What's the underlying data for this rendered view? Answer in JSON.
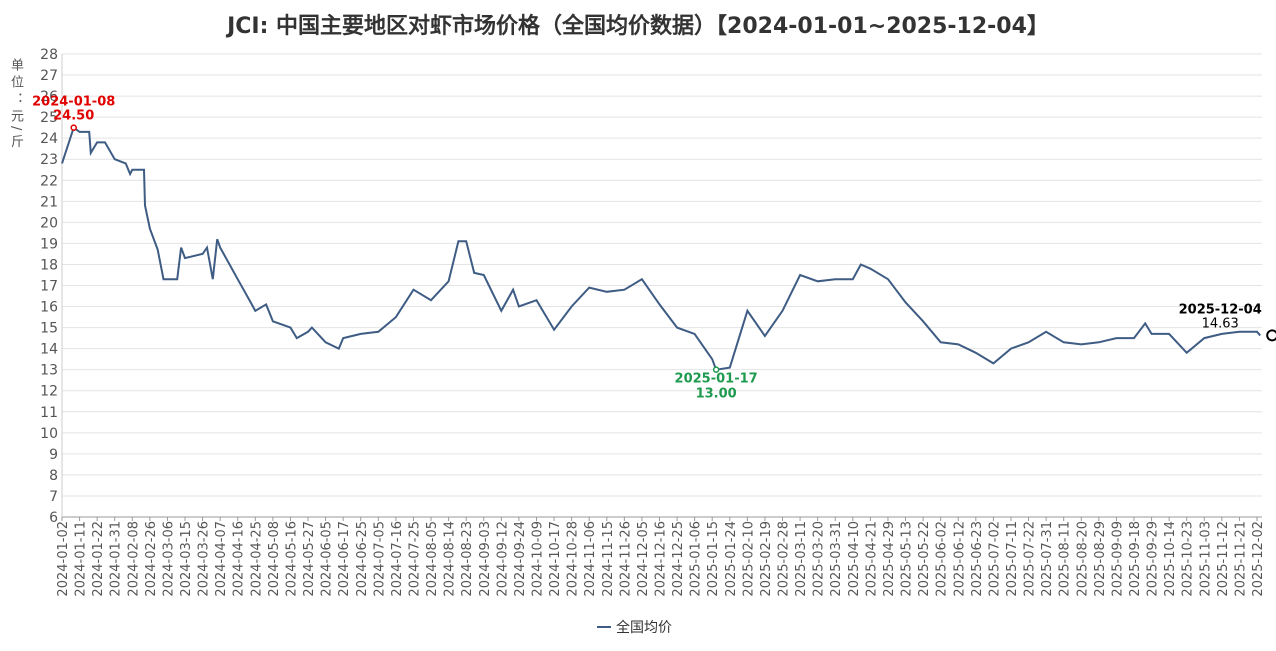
{
  "chart_data": {
    "type": "line",
    "title": "JCI: 中国主要地区对虾市场价格（全国均价数据）【2024-01-01~2025-12-04】",
    "y_label": "单位：元/斤",
    "ylim": [
      6,
      28
    ],
    "yticks": [
      6,
      7,
      8,
      9,
      10,
      11,
      12,
      13,
      14,
      15,
      16,
      17,
      18,
      19,
      20,
      21,
      22,
      23,
      24,
      25,
      26,
      27,
      28
    ],
    "xticks": [
      "2024-01-02",
      "2024-01-11",
      "2024-01-22",
      "2024-01-31",
      "2024-02-08",
      "2024-02-26",
      "2024-03-06",
      "2024-03-15",
      "2024-03-26",
      "2024-04-07",
      "2024-04-16",
      "2024-04-25",
      "2024-05-08",
      "2024-05-16",
      "2024-05-27",
      "2024-06-05",
      "2024-06-17",
      "2024-06-25",
      "2024-07-05",
      "2024-07-16",
      "2024-07-25",
      "2024-08-05",
      "2024-08-14",
      "2024-08-23",
      "2024-09-03",
      "2024-09-12",
      "2024-09-24",
      "2024-10-09",
      "2024-10-17",
      "2024-10-28",
      "2024-11-06",
      "2024-11-15",
      "2024-11-26",
      "2024-12-05",
      "2024-12-16",
      "2024-12-25",
      "2025-01-06",
      "2025-01-15",
      "2025-01-24",
      "2025-02-10",
      "2025-02-19",
      "2025-02-28",
      "2025-03-11",
      "2025-03-20",
      "2025-03-31",
      "2025-04-10",
      "2025-04-21",
      "2025-04-29",
      "2025-05-13",
      "2025-05-22",
      "2025-06-02",
      "2025-06-12",
      "2025-06-23",
      "2025-07-02",
      "2025-07-11",
      "2025-07-22",
      "2025-07-31",
      "2025-08-11",
      "2025-08-20",
      "2025-08-29",
      "2025-09-09",
      "2025-09-18",
      "2025-09-29",
      "2025-10-14",
      "2025-10-23",
      "2025-11-03",
      "2025-11-12",
      "2025-11-21",
      "2025-12-02"
    ],
    "grid": true,
    "x": [
      "2024-01-02",
      "2024-01-08",
      "2024-01-11",
      "2024-01-17",
      "2024-01-18",
      "2024-01-22",
      "2024-01-26",
      "2024-01-31",
      "2024-02-05",
      "2024-02-07",
      "2024-02-08",
      "2024-02-20",
      "2024-02-21",
      "2024-02-26",
      "2024-03-01",
      "2024-03-04",
      "2024-03-06",
      "2024-03-11",
      "2024-03-13",
      "2024-03-15",
      "2024-03-26",
      "2024-03-29",
      "2024-04-02",
      "2024-04-05",
      "2024-04-07",
      "2024-04-16",
      "2024-04-22",
      "2024-04-25",
      "2024-05-03",
      "2024-05-08",
      "2024-05-16",
      "2024-05-20",
      "2024-05-27",
      "2024-05-29",
      "2024-06-05",
      "2024-06-14",
      "2024-06-17",
      "2024-06-25",
      "2024-07-05",
      "2024-07-16",
      "2024-07-25",
      "2024-08-05",
      "2024-08-14",
      "2024-08-19",
      "2024-08-23",
      "2024-08-28",
      "2024-09-03",
      "2024-09-12",
      "2024-09-20",
      "2024-09-24",
      "2024-10-09",
      "2024-10-17",
      "2024-10-28",
      "2024-11-06",
      "2024-11-15",
      "2024-11-26",
      "2024-12-05",
      "2024-12-16",
      "2024-12-25",
      "2025-01-06",
      "2025-01-15",
      "2025-01-17",
      "2025-01-24",
      "2025-02-10",
      "2025-02-19",
      "2025-02-28",
      "2025-03-11",
      "2025-03-20",
      "2025-03-31",
      "2025-04-10",
      "2025-04-15",
      "2025-04-21",
      "2025-04-29",
      "2025-05-13",
      "2025-05-22",
      "2025-06-02",
      "2025-06-12",
      "2025-06-23",
      "2025-07-02",
      "2025-07-11",
      "2025-07-22",
      "2025-07-31",
      "2025-08-11",
      "2025-08-20",
      "2025-08-29",
      "2025-09-09",
      "2025-09-18",
      "2025-09-25",
      "2025-09-29",
      "2025-10-14",
      "2025-10-23",
      "2025-11-03",
      "2025-11-12",
      "2025-11-21",
      "2025-12-02",
      "2025-12-04"
    ],
    "series": [
      {
        "name": "全国均价",
        "color": "#3e5c84",
        "values": [
          22.8,
          24.5,
          24.3,
          24.3,
          23.3,
          23.8,
          23.8,
          23.0,
          22.8,
          22.3,
          22.5,
          22.5,
          20.8,
          19.7,
          18.7,
          17.3,
          17.3,
          17.3,
          18.8,
          18.3,
          18.5,
          18.8,
          17.3,
          19.2,
          18.8,
          17.3,
          16.3,
          15.8,
          16.1,
          15.3,
          15.0,
          14.5,
          14.8,
          15.0,
          14.3,
          14.0,
          14.5,
          14.7,
          14.8,
          15.5,
          16.8,
          16.3,
          17.2,
          19.1,
          19.1,
          17.6,
          17.5,
          15.8,
          16.8,
          16.0,
          16.3,
          14.9,
          16.0,
          16.9,
          16.7,
          16.8,
          17.3,
          16.1,
          15.0,
          14.7,
          13.5,
          13.0,
          13.1,
          15.8,
          14.6,
          15.8,
          17.5,
          17.2,
          17.3,
          17.3,
          18.0,
          17.8,
          17.3,
          16.2,
          15.3,
          14.3,
          14.2,
          13.8,
          13.3,
          14.0,
          14.3,
          14.8,
          14.3,
          14.2,
          14.3,
          14.5,
          14.5,
          15.2,
          14.7,
          14.7,
          13.8,
          14.5,
          14.7,
          14.8,
          14.8,
          14.63
        ]
      }
    ],
    "annotations": [
      {
        "x": "2024-01-08",
        "label": "24.50",
        "color": "#e00000"
      },
      {
        "x": "2025-01-17",
        "label": "13.00",
        "color": "#1e9a4e"
      },
      {
        "x": "2025-12-04",
        "label": "14.63",
        "color": "#000000"
      }
    ]
  }
}
